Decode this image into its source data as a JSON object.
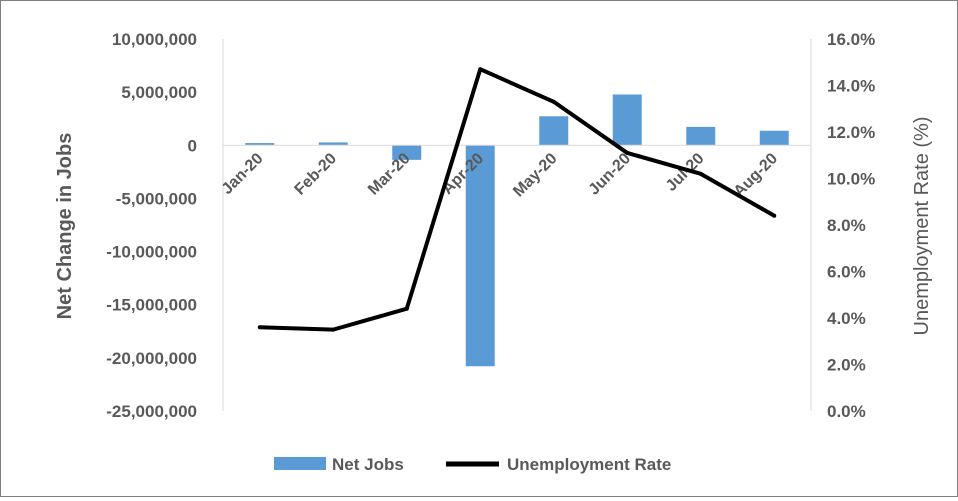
{
  "chart_data": {
    "type": "bar-line-combo",
    "categories": [
      "Jan-20",
      "Feb-20",
      "Mar-20",
      "Apr-20",
      "May-20",
      "Jun-20",
      "Jul-20",
      "Aug-20"
    ],
    "series": [
      {
        "name": "Net Jobs",
        "type": "bar",
        "axis": "left",
        "color": "#5b9bd5",
        "values": [
          210000,
          270000,
          -1370000,
          -20790000,
          2730000,
          4780000,
          1730000,
          1370000
        ]
      },
      {
        "name": "Unemployment Rate",
        "type": "line",
        "axis": "right",
        "color": "#000000",
        "values": [
          3.6,
          3.5,
          4.4,
          14.7,
          13.3,
          11.1,
          10.2,
          8.4
        ]
      }
    ],
    "ylabel": "Net Change in Jobs",
    "y2label": "Unemployment Rate (%)",
    "ylim": [
      -25000000,
      10000000
    ],
    "y2lim": [
      0,
      16
    ],
    "yticks": [
      "10,000,000",
      "5,000,000",
      "0",
      "-5,000,000",
      "-10,000,000",
      "-15,000,000",
      "-20,000,000",
      "-25,000,000"
    ],
    "y2ticks": [
      "16.0%",
      "14.0%",
      "12.0%",
      "10.0%",
      "8.0%",
      "6.0%",
      "4.0%",
      "2.0%",
      "0.0%"
    ],
    "legend": "bottom",
    "grid": false
  }
}
